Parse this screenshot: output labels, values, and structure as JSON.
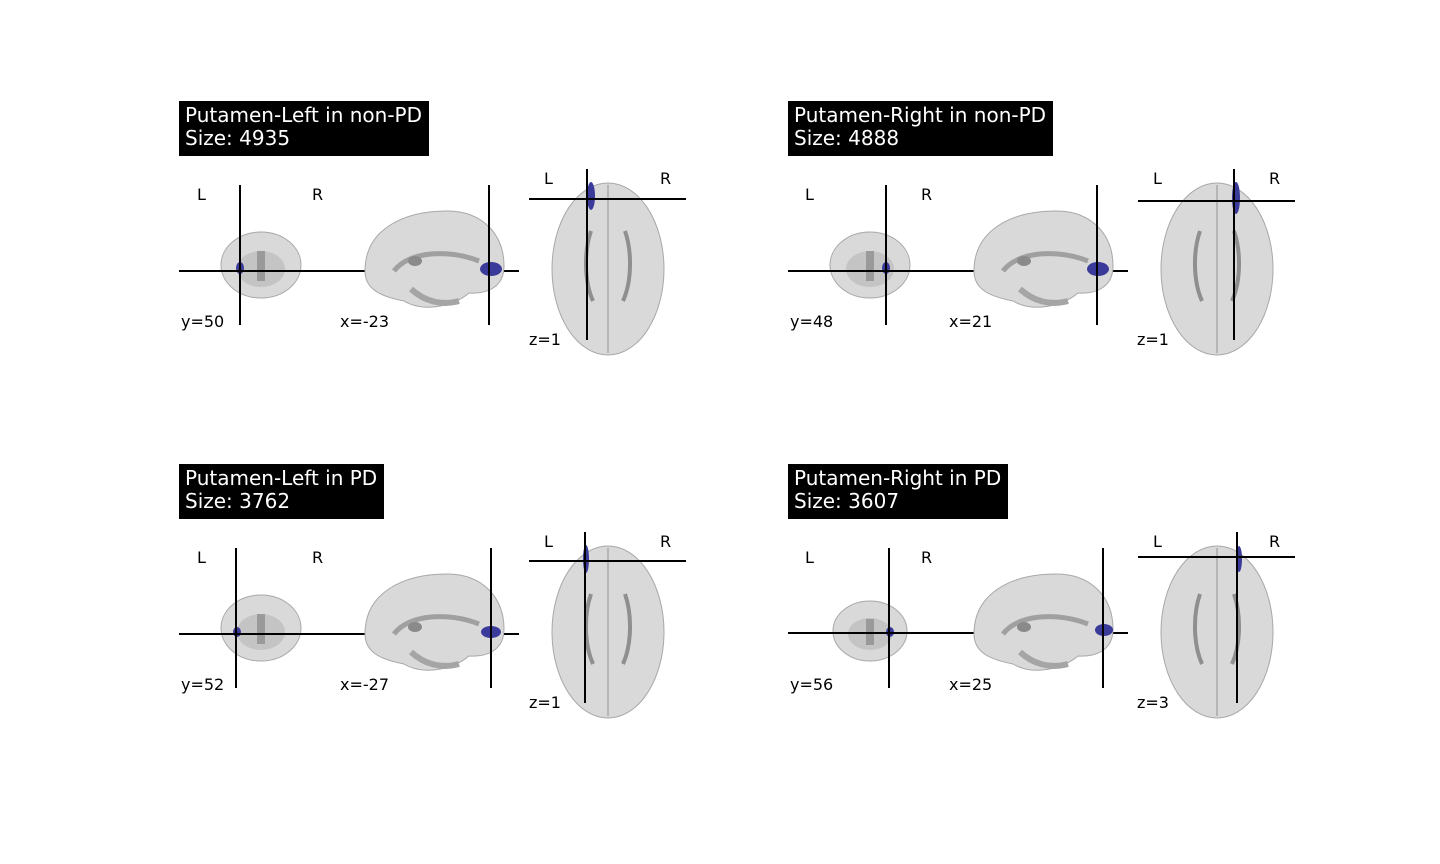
{
  "panels": [
    {
      "title": "Putamen-Left in non-PD",
      "size_label": "Size: 4935",
      "coronal_coord": "y=50",
      "sagittal_coord": "x=-23",
      "axial_coord": "z=1",
      "left_label": "L",
      "right_label": "R",
      "hemisphere": "left"
    },
    {
      "title": "Putamen-Right in non-PD",
      "size_label": "Size: 4888",
      "coronal_coord": "y=48",
      "sagittal_coord": "x=21",
      "axial_coord": "z=1",
      "left_label": "L",
      "right_label": "R",
      "hemisphere": "right"
    },
    {
      "title": "Putamen-Left in PD",
      "size_label": "Size: 3762",
      "coronal_coord": "y=52",
      "sagittal_coord": "x=-27",
      "axial_coord": "z=1",
      "left_label": "L",
      "right_label": "R",
      "hemisphere": "left"
    },
    {
      "title": "Putamen-Right in PD",
      "size_label": "Size: 3607",
      "coronal_coord": "y=56",
      "sagittal_coord": "x=25",
      "axial_coord": "z=3",
      "left_label": "L",
      "right_label": "R",
      "hemisphere": "right"
    }
  ],
  "colors": {
    "background": "#ffffff",
    "title_bg": "#000000",
    "title_text": "#ffffff",
    "brain_fill": "#d9d9d9",
    "brain_mid": "#b8b8b8",
    "brain_dark": "#8a8a8a",
    "overlay": "#3a3a9a",
    "crosshair": "#000000"
  }
}
